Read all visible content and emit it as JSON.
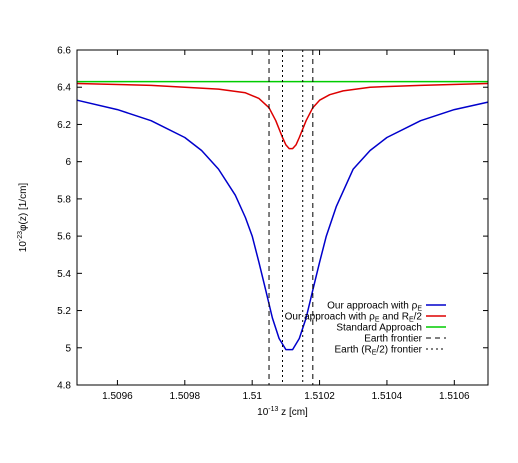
{
  "chart_data": {
    "type": "line",
    "title": "",
    "xlabel_prefix": "10",
    "xlabel_exp": "-13",
    "xlabel_rest": " z [cm]",
    "ylabel_prefix": "10",
    "ylabel_exp": "-23",
    "ylabel_rest": "φ(z) [1/cm]",
    "xlim": [
      1.50948,
      1.5107
    ],
    "ylim": [
      4.8,
      6.6
    ],
    "xticks": [
      1.5096,
      1.5098,
      1.51,
      1.5102,
      1.5104,
      1.5106
    ],
    "xtick_labels": [
      "1.5096",
      "1.5098",
      "1.51",
      "1.5102",
      "1.5104",
      "1.5106"
    ],
    "yticks": [
      4.8,
      5.0,
      5.2,
      5.4,
      5.6,
      5.8,
      6.0,
      6.2,
      6.4,
      6.6
    ],
    "ytick_labels": [
      "4.8",
      "5",
      "5.2",
      "5.4",
      "5.6",
      "5.8",
      "6",
      "6.2",
      "6.4",
      "6.6"
    ],
    "grid": false,
    "legend_position": "bottom-right",
    "series": [
      {
        "name_main": "Our approach with ρ",
        "name_sub": "E",
        "name_tail": "",
        "name_sub2": "",
        "name_tail2": "",
        "color": "#0000cc",
        "style": "solid",
        "x": [
          1.50948,
          1.5096,
          1.5097,
          1.5098,
          1.50985,
          1.5099,
          1.50995,
          1.50998,
          1.51,
          1.51002,
          1.51004,
          1.51006,
          1.51008,
          1.5101,
          1.51012,
          1.51014,
          1.51016,
          1.51018,
          1.5102,
          1.51022,
          1.51025,
          1.5103,
          1.51035,
          1.5104,
          1.5105,
          1.5106,
          1.5107
        ],
        "y": [
          6.33,
          6.28,
          6.22,
          6.13,
          6.06,
          5.96,
          5.82,
          5.7,
          5.6,
          5.46,
          5.31,
          5.16,
          5.05,
          4.99,
          4.99,
          5.05,
          5.16,
          5.31,
          5.46,
          5.6,
          5.76,
          5.96,
          6.06,
          6.13,
          6.22,
          6.28,
          6.32
        ]
      },
      {
        "name_main": "Our approach with ρ",
        "name_sub": "E",
        "name_tail": " and R",
        "name_sub2": "E",
        "name_tail2": "/2",
        "color": "#dd0000",
        "style": "solid",
        "x": [
          1.50948,
          1.5097,
          1.5099,
          1.50998,
          1.51002,
          1.51005,
          1.51007,
          1.51009,
          1.5101,
          1.51011,
          1.51012,
          1.51013,
          1.51014,
          1.51016,
          1.51018,
          1.5102,
          1.51023,
          1.51027,
          1.51035,
          1.5105,
          1.5107
        ],
        "y": [
          6.42,
          6.41,
          6.39,
          6.37,
          6.34,
          6.29,
          6.22,
          6.13,
          6.09,
          6.07,
          6.07,
          6.09,
          6.13,
          6.22,
          6.29,
          6.33,
          6.36,
          6.38,
          6.4,
          6.41,
          6.42
        ]
      },
      {
        "name_main": "Standard Approach",
        "name_sub": "",
        "name_tail": "",
        "name_sub2": "",
        "name_tail2": "",
        "color": "#00cc00",
        "style": "solid",
        "x": [
          1.50948,
          1.5107
        ],
        "y": [
          6.43,
          6.43
        ]
      },
      {
        "name_main": "Earth frontier",
        "name_sub": "",
        "name_tail": "",
        "name_sub2": "",
        "name_tail2": "",
        "color": "#000000",
        "style": "dashed",
        "verticals": [
          1.51005,
          1.51018
        ]
      },
      {
        "name_main": "Earth (R",
        "name_sub": "E",
        "name_tail": "/2) frontier",
        "name_sub2": "",
        "name_tail2": "",
        "color": "#000000",
        "style": "dotted",
        "verticals": [
          1.51009,
          1.51015
        ]
      }
    ]
  }
}
